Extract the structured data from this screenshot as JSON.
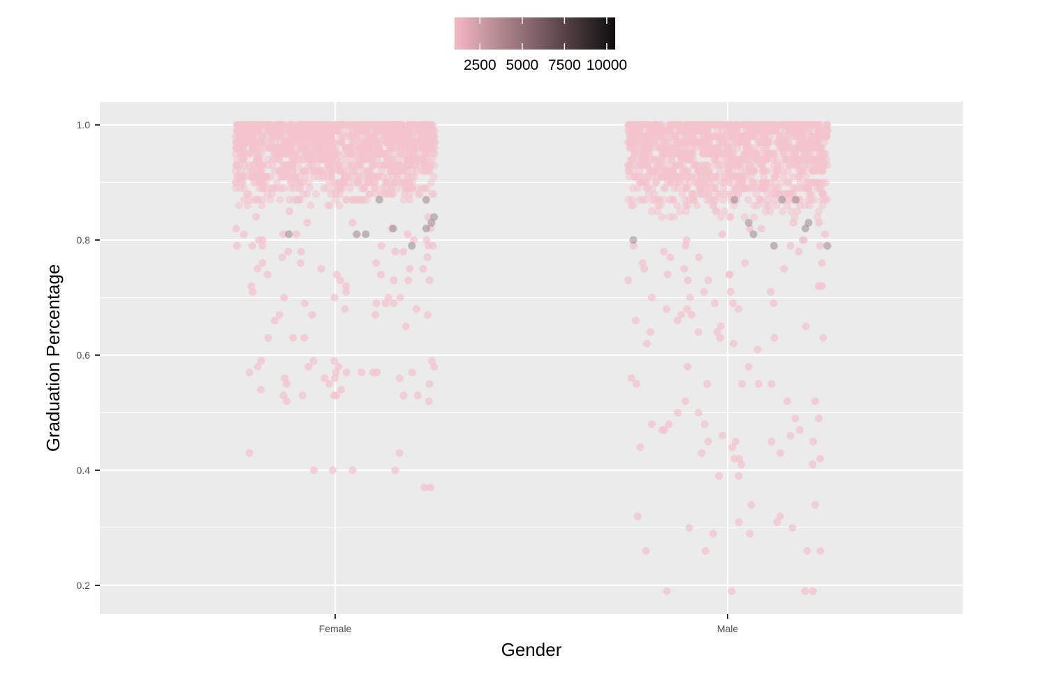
{
  "chart_data": {
    "type": "scatter",
    "title": "",
    "xlabel": "Gender",
    "ylabel": "Graduation Percentage",
    "categories": [
      "Female",
      "Male"
    ],
    "ylim": [
      0.15,
      1.04
    ],
    "yticks": [
      0.2,
      0.4,
      0.6,
      0.8,
      1.0
    ],
    "ytick_labels": [
      "0.2",
      "0.4",
      "0.6",
      "0.8",
      "1.0"
    ],
    "grid": true,
    "jitter": true,
    "point_color": "#f4c2cc",
    "point_alpha": 0.55,
    "legend": {
      "position": "top",
      "type": "colorbar",
      "range": [
        1000,
        10500
      ],
      "low_color": "#f4b8c4",
      "high_color": "#0d0d0d",
      "breaks": [
        2500,
        5000,
        7500,
        10000
      ],
      "labels": [
        "2500",
        "5000",
        "7500",
        "10000"
      ]
    },
    "series": [
      {
        "category": "Female",
        "dense_band": [
          0.855,
          1.0
        ],
        "y": [
          0.85,
          0.84,
          0.84,
          0.83,
          0.83,
          0.82,
          0.82,
          0.82,
          0.81,
          0.81,
          0.81,
          0.81,
          0.8,
          0.8,
          0.8,
          0.8,
          0.79,
          0.79,
          0.79,
          0.79,
          0.79,
          0.79,
          0.78,
          0.78,
          0.78,
          0.78,
          0.77,
          0.77,
          0.76,
          0.76,
          0.76,
          0.75,
          0.75,
          0.75,
          0.75,
          0.74,
          0.74,
          0.74,
          0.73,
          0.73,
          0.73,
          0.73,
          0.72,
          0.72,
          0.71,
          0.71,
          0.7,
          0.7,
          0.7,
          0.7,
          0.69,
          0.69,
          0.69,
          0.69,
          0.68,
          0.68,
          0.67,
          0.67,
          0.67,
          0.67,
          0.66,
          0.65,
          0.63,
          0.63,
          0.63,
          0.59,
          0.59,
          0.59,
          0.59,
          0.58,
          0.58,
          0.58,
          0.58,
          0.57,
          0.57,
          0.57,
          0.57,
          0.57,
          0.57,
          0.57,
          0.56,
          0.56,
          0.56,
          0.56,
          0.55,
          0.55,
          0.55,
          0.54,
          0.54,
          0.53,
          0.53,
          0.53,
          0.53,
          0.53,
          0.53,
          0.52,
          0.52,
          0.43,
          0.43,
          0.4,
          0.4,
          0.4,
          0.4,
          0.37,
          0.37
        ]
      },
      {
        "category": "Male",
        "dense_band": [
          0.835,
          1.0
        ],
        "y": [
          0.83,
          0.83,
          0.82,
          0.82,
          0.81,
          0.81,
          0.8,
          0.8,
          0.8,
          0.79,
          0.79,
          0.79,
          0.79,
          0.78,
          0.78,
          0.77,
          0.77,
          0.76,
          0.76,
          0.76,
          0.75,
          0.75,
          0.75,
          0.74,
          0.74,
          0.74,
          0.73,
          0.73,
          0.73,
          0.72,
          0.72,
          0.71,
          0.71,
          0.71,
          0.7,
          0.7,
          0.69,
          0.69,
          0.69,
          0.68,
          0.68,
          0.68,
          0.67,
          0.67,
          0.66,
          0.66,
          0.65,
          0.65,
          0.64,
          0.64,
          0.64,
          0.63,
          0.63,
          0.63,
          0.62,
          0.62,
          0.61,
          0.58,
          0.58,
          0.56,
          0.55,
          0.55,
          0.55,
          0.55,
          0.55,
          0.52,
          0.52,
          0.52,
          0.5,
          0.5,
          0.49,
          0.49,
          0.48,
          0.48,
          0.48,
          0.47,
          0.47,
          0.47,
          0.46,
          0.46,
          0.45,
          0.45,
          0.45,
          0.45,
          0.44,
          0.44,
          0.43,
          0.43,
          0.42,
          0.42,
          0.42,
          0.41,
          0.41,
          0.39,
          0.39,
          0.34,
          0.34,
          0.32,
          0.32,
          0.31,
          0.31,
          0.3,
          0.3,
          0.29,
          0.29,
          0.26,
          0.26,
          0.26,
          0.26,
          0.19,
          0.19,
          0.19,
          0.19
        ]
      }
    ]
  }
}
